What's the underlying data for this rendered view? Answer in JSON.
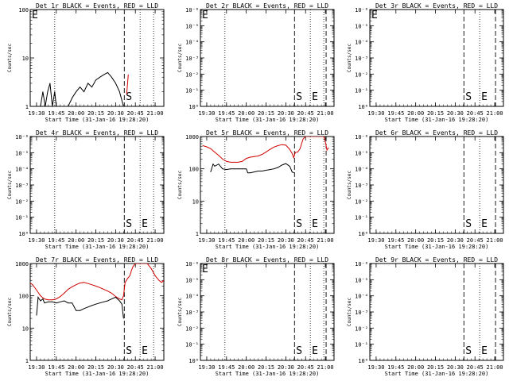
{
  "page": {
    "title": "",
    "background": "#ffffff",
    "colors": {
      "events": "#000000",
      "lld": "#d40000"
    }
  },
  "common": {
    "xlabel": "Start Time (31-Jan-16 19:28:20)",
    "ylabel": "Counts/sec",
    "xticks": [
      "19:30",
      "19:45",
      "20:00",
      "20:15",
      "20:30",
      "20:45",
      "21:00"
    ],
    "xrange_hours": [
      19.42,
      21.11
    ],
    "markers": {
      "S": {
        "label": "S",
        "style": "dashed",
        "x": 20.61
      },
      "E": {
        "label": "E",
        "style": "dotted",
        "x": 20.81
      },
      "extra_dotted": [
        19.73,
        20.98
      ],
      "extra_dashed": [
        21.01
      ]
    }
  },
  "chart_data": [
    {
      "type": "line",
      "title": "Det 1r BLACK = Events, RED = LLD",
      "ylabel": "Counts/sec",
      "yscale": "log",
      "ylim": [
        1,
        100
      ],
      "yticks": [
        "1",
        "10",
        "100"
      ],
      "label_corner": "E",
      "vlines_dotted": [
        19.73,
        20.81,
        20.98
      ],
      "vlines_dashed": [
        20.61
      ],
      "marker_labels": [
        {
          "text": "S",
          "x": 20.61
        }
      ],
      "series": [
        {
          "color": "#000000",
          "x": [
            19.55,
            19.58,
            19.61,
            19.64,
            19.67,
            19.7,
            19.73,
            19.75,
            19.9,
            19.95,
            20.0,
            20.05,
            20.1,
            20.15,
            20.2,
            20.25,
            20.3,
            20.35,
            20.4,
            20.45,
            20.5,
            20.55,
            20.6
          ],
          "y": [
            1,
            2,
            1,
            2,
            3,
            1,
            2,
            1,
            1,
            1.5,
            2,
            2.5,
            2,
            3,
            2.5,
            3.5,
            4,
            4.5,
            5,
            4,
            3,
            2,
            1
          ]
        },
        {
          "color": "#d40000",
          "x": [
            20.64,
            20.66
          ],
          "y": [
            1.8,
            4.5
          ]
        }
      ]
    },
    {
      "type": "line",
      "title": "Det 2r BLACK = Events, RED = LLD",
      "ylabel": "Counts/sec",
      "yscale": "log",
      "ylim": [
        1,
        1e-06
      ],
      "yticks": [
        "10⁰",
        "10⁻¹",
        "10⁻²",
        "10⁻³",
        "10⁻⁴",
        "10⁻⁵",
        "10⁻⁶"
      ],
      "label_corner": "E",
      "vlines_dotted": [
        19.73,
        20.81,
        20.98
      ],
      "vlines_dashed": [
        20.61,
        21.01
      ],
      "marker_labels": [
        {
          "text": "S",
          "x": 20.61
        },
        {
          "text": "E",
          "x": 20.81
        }
      ],
      "series": []
    },
    {
      "type": "line",
      "title": "Det 3r BLACK = Events, RED = LLD",
      "ylabel": "Counts/sec",
      "yscale": "log",
      "ylim": [
        1,
        1e-06
      ],
      "yticks": [
        "10⁰",
        "10⁻¹",
        "10⁻²",
        "10⁻³",
        "10⁻⁴",
        "10⁻⁵",
        "10⁻⁶"
      ],
      "label_corner": "E",
      "vlines_dotted": [
        20.81
      ],
      "vlines_dashed": [
        20.61,
        21.01
      ],
      "marker_labels": [
        {
          "text": "S",
          "x": 20.61
        },
        {
          "text": "E",
          "x": 20.81
        }
      ],
      "series": []
    },
    {
      "type": "line",
      "title": "Det 4r BLACK = Events, RED = LLD",
      "ylabel": "Counts/sec",
      "yscale": "log",
      "ylim": [
        1,
        1e-06
      ],
      "yticks": [
        "10⁰",
        "10⁻¹",
        "10⁻²",
        "10⁻³",
        "10⁻⁴",
        "10⁻⁵",
        "10⁻⁶"
      ],
      "label_corner": "",
      "vlines_dotted": [
        19.73,
        20.81,
        20.98
      ],
      "vlines_dashed": [
        20.61
      ],
      "marker_labels": [
        {
          "text": "S",
          "x": 20.61
        },
        {
          "text": "E",
          "x": 20.81
        }
      ],
      "series": []
    },
    {
      "type": "line",
      "title": "Det 5r BLACK = Events, RED = LLD",
      "ylabel": "Counts/sec",
      "yscale": "log",
      "ylim": [
        1,
        1000
      ],
      "yticks": [
        "1",
        "10",
        "100",
        "1000"
      ],
      "label_corner": "",
      "vlines_dotted": [
        19.73,
        20.81,
        20.98
      ],
      "vlines_dashed": [
        20.61,
        21.01
      ],
      "marker_labels": [
        {
          "text": "S",
          "x": 20.61
        },
        {
          "text": "E",
          "x": 20.81
        }
      ],
      "series": [
        {
          "color": "#d40000",
          "x": [
            19.45,
            19.5,
            19.55,
            19.6,
            19.65,
            19.7,
            19.75,
            19.8,
            19.85,
            19.9,
            19.95,
            20.0,
            20.05,
            20.1,
            20.15,
            20.2,
            20.25,
            20.3,
            20.35,
            20.4,
            20.45,
            20.5,
            20.55,
            20.58,
            20.6,
            20.62,
            20.65,
            20.68,
            20.7,
            20.72,
            20.75,
            20.78,
            20.8,
            20.83,
            20.86,
            20.88,
            20.9,
            20.93,
            20.95,
            20.98,
            21.0,
            21.02,
            21.04
          ],
          "y": [
            520,
            480,
            420,
            330,
            260,
            200,
            170,
            160,
            160,
            160,
            170,
            210,
            230,
            240,
            250,
            280,
            330,
            400,
            470,
            520,
            560,
            540,
            400,
            300,
            220,
            320,
            330,
            420,
            600,
            850,
            1000,
            1000,
            1000,
            1000,
            1000,
            1000,
            1000,
            1000,
            1000,
            1000,
            680,
            380,
            450
          ]
        },
        {
          "color": "#000000",
          "x": [
            19.55,
            19.58,
            19.6,
            19.65,
            19.7,
            19.75,
            19.8,
            19.85,
            19.9,
            19.95,
            20.0,
            20.02,
            20.05,
            20.1,
            20.15,
            20.2,
            20.25,
            20.3,
            20.35,
            20.4,
            20.45,
            20.5,
            20.55,
            20.58,
            20.6
          ],
          "y": [
            80,
            140,
            120,
            140,
            100,
            95,
            100,
            100,
            100,
            100,
            100,
            75,
            75,
            80,
            85,
            85,
            90,
            95,
            100,
            110,
            130,
            145,
            120,
            80,
            75
          ]
        }
      ]
    },
    {
      "type": "line",
      "title": "Det 6r BLACK = Events, RED = LLD",
      "ylabel": "Counts/sec",
      "yscale": "log",
      "ylim": [
        1,
        1e-06
      ],
      "yticks": [
        "10⁰",
        "10⁻¹",
        "10⁻²",
        "10⁻³",
        "10⁻⁴",
        "10⁻⁵",
        "10⁻⁶"
      ],
      "label_corner": "",
      "vlines_dotted": [
        20.81
      ],
      "vlines_dashed": [
        20.61,
        21.01
      ],
      "marker_labels": [
        {
          "text": "S",
          "x": 20.61
        },
        {
          "text": "E",
          "x": 20.81
        }
      ],
      "series": []
    },
    {
      "type": "line",
      "title": "Det 7r BLACK = Events, RED = LLD",
      "ylabel": "Counts/sec",
      "yscale": "log",
      "ylim": [
        1,
        1000
      ],
      "yticks": [
        "1",
        "10",
        "100",
        "1000"
      ],
      "label_corner": "",
      "vlines_dotted": [
        19.73,
        20.81,
        20.98
      ],
      "vlines_dashed": [
        20.61
      ],
      "marker_labels": [
        {
          "text": "S",
          "x": 20.61
        },
        {
          "text": "E",
          "x": 20.81
        }
      ],
      "series": [
        {
          "color": "#d40000",
          "x": [
            19.42,
            19.45,
            19.5,
            19.55,
            19.6,
            19.65,
            19.7,
            19.75,
            19.8,
            19.85,
            19.9,
            19.95,
            20.0,
            20.05,
            20.1,
            20.15,
            20.2,
            20.25,
            20.3,
            20.35,
            20.4,
            20.45,
            20.5,
            20.55,
            20.58,
            20.6,
            20.62,
            20.65,
            20.68,
            20.7,
            20.72,
            20.75,
            20.78,
            20.8,
            20.83,
            20.86,
            20.88,
            20.9,
            20.95,
            21.0,
            21.05,
            21.08,
            21.11
          ],
          "y": [
            250,
            220,
            150,
            100,
            80,
            75,
            75,
            80,
            95,
            120,
            160,
            190,
            220,
            250,
            260,
            240,
            220,
            200,
            180,
            160,
            140,
            120,
            95,
            80,
            75,
            100,
            260,
            340,
            420,
            600,
            800,
            1000,
            1000,
            1000,
            1000,
            1000,
            1000,
            1000,
            700,
            420,
            300,
            260,
            300
          ]
        },
        {
          "color": "#000000",
          "x": [
            19.5,
            19.52,
            19.55,
            19.58,
            19.6,
            19.65,
            19.7,
            19.75,
            19.8,
            19.85,
            19.9,
            19.95,
            20.0,
            20.05,
            20.1,
            20.15,
            20.2,
            20.25,
            20.3,
            20.35,
            20.4,
            20.45,
            20.5,
            20.55,
            20.58,
            20.6
          ],
          "y": [
            25,
            90,
            70,
            80,
            60,
            65,
            65,
            60,
            65,
            70,
            60,
            60,
            35,
            35,
            40,
            45,
            50,
            55,
            60,
            65,
            70,
            80,
            90,
            70,
            55,
            20
          ]
        }
      ]
    },
    {
      "type": "line",
      "title": "Det 8r BLACK = Events, RED = LLD",
      "ylabel": "Counts/sec",
      "yscale": "log",
      "ylim": [
        1,
        1e-06
      ],
      "yticks": [
        "10⁰",
        "10⁻¹",
        "10⁻²",
        "10⁻³",
        "10⁻⁴",
        "10⁻⁵",
        "10⁻⁶"
      ],
      "label_corner": "E",
      "vlines_dotted": [
        19.73,
        20.81,
        20.98
      ],
      "vlines_dashed": [
        20.61,
        21.01
      ],
      "marker_labels": [
        {
          "text": "S",
          "x": 20.61
        },
        {
          "text": "E",
          "x": 20.81
        }
      ],
      "series": []
    },
    {
      "type": "line",
      "title": "Det 9r BLACK = Events, RED = LLD",
      "ylabel": "Counts/sec",
      "yscale": "log",
      "ylim": [
        1,
        1e-06
      ],
      "yticks": [
        "10⁰",
        "10⁻¹",
        "10⁻²",
        "10⁻³",
        "10⁻⁴",
        "10⁻⁵",
        "10⁻⁶"
      ],
      "label_corner": "",
      "vlines_dotted": [
        20.81
      ],
      "vlines_dashed": [
        20.61,
        21.01
      ],
      "marker_labels": [
        {
          "text": "S",
          "x": 20.61
        },
        {
          "text": "E",
          "x": 20.81
        }
      ],
      "series": []
    }
  ]
}
